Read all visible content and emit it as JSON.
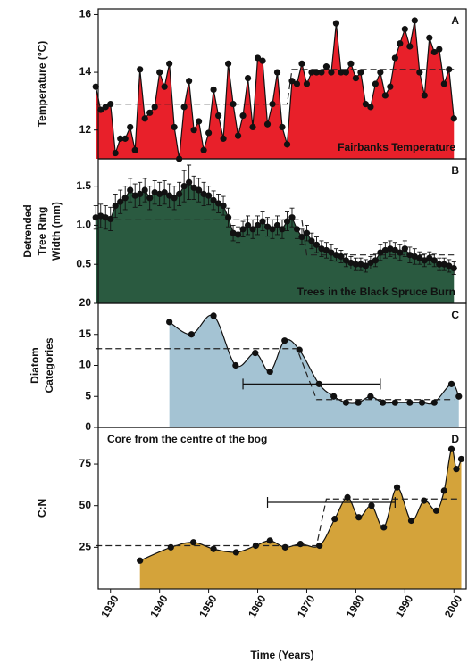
{
  "chart_data": [
    {
      "type": "area",
      "panel_label": "A",
      "note": "Fairbanks Temperature",
      "y_label": [
        "Temperature (°C)"
      ],
      "color": "#e8202a",
      "x": [
        1927,
        1928,
        1929,
        1930,
        1931,
        1932,
        1933,
        1934,
        1935,
        1936,
        1937,
        1938,
        1939,
        1940,
        1941,
        1942,
        1943,
        1944,
        1945,
        1946,
        1947,
        1948,
        1949,
        1950,
        1951,
        1952,
        1953,
        1954,
        1955,
        1956,
        1957,
        1958,
        1959,
        1960,
        1961,
        1962,
        1963,
        1964,
        1965,
        1966,
        1967,
        1968,
        1969,
        1970,
        1971,
        1972,
        1973,
        1974,
        1975,
        1976,
        1977,
        1978,
        1979,
        1980,
        1981,
        1982,
        1983,
        1984,
        1985,
        1986,
        1987,
        1988,
        1989,
        1990,
        1991,
        1992,
        1993,
        1994,
        1995,
        1996,
        1997,
        1998,
        1999,
        2000
      ],
      "values": [
        13.5,
        12.7,
        12.8,
        12.9,
        11.2,
        11.7,
        11.7,
        12.1,
        11.3,
        14.1,
        12.4,
        12.6,
        12.8,
        14.0,
        13.5,
        14.3,
        12.1,
        11.0,
        12.8,
        13.7,
        12.0,
        12.3,
        11.3,
        11.9,
        13.4,
        12.5,
        11.7,
        14.3,
        12.9,
        11.8,
        12.5,
        13.8,
        12.1,
        14.5,
        14.4,
        12.2,
        12.9,
        14.0,
        12.1,
        11.5,
        13.7,
        13.6,
        14.3,
        13.6,
        14.0,
        14.0,
        14.0,
        14.2,
        14.0,
        15.7,
        14.0,
        14.0,
        14.3,
        13.8,
        14.0,
        12.9,
        12.8,
        13.6,
        14.0,
        13.2,
        13.5,
        14.5,
        15.0,
        15.5,
        14.9,
        15.8,
        14.0,
        13.2,
        15.2,
        14.7,
        14.8,
        13.6,
        14.1,
        12.4
      ],
      "mean_line": {
        "x": [
          1927,
          1966,
          1967,
          2000
        ],
        "values": [
          12.9,
          12.9,
          14.1,
          14.1
        ]
      },
      "xlim": [
        1927.5,
        2002.5
      ],
      "ylim": [
        11,
        16.2
      ],
      "yticks": [
        12,
        14,
        16
      ]
    },
    {
      "type": "area",
      "panel_label": "B",
      "note": "Trees in the Black Spruce Burn",
      "y_label": [
        "Detrended",
        "Tree Ring",
        "Width (mm)"
      ],
      "color": "#2a5a40",
      "x": [
        1927,
        1928,
        1929,
        1930,
        1931,
        1932,
        1933,
        1934,
        1935,
        1936,
        1937,
        1938,
        1939,
        1940,
        1941,
        1942,
        1943,
        1944,
        1945,
        1946,
        1947,
        1948,
        1949,
        1950,
        1951,
        1952,
        1953,
        1954,
        1955,
        1956,
        1957,
        1958,
        1959,
        1960,
        1961,
        1962,
        1963,
        1964,
        1965,
        1966,
        1967,
        1968,
        1969,
        1970,
        1971,
        1972,
        1973,
        1974,
        1975,
        1976,
        1977,
        1978,
        1979,
        1980,
        1981,
        1982,
        1983,
        1984,
        1985,
        1986,
        1987,
        1988,
        1989,
        1990,
        1991,
        1992,
        1993,
        1994,
        1995,
        1996,
        1997,
        1998,
        1999,
        2000
      ],
      "values": [
        1.1,
        1.12,
        1.1,
        1.08,
        1.25,
        1.3,
        1.35,
        1.45,
        1.38,
        1.4,
        1.45,
        1.35,
        1.42,
        1.4,
        1.42,
        1.38,
        1.35,
        1.4,
        1.5,
        1.55,
        1.48,
        1.45,
        1.4,
        1.38,
        1.32,
        1.28,
        1.25,
        1.1,
        0.9,
        0.88,
        0.95,
        1.0,
        0.95,
        1.0,
        1.05,
        0.98,
        0.95,
        1.0,
        0.95,
        1.05,
        1.1,
        0.95,
        0.85,
        0.9,
        0.8,
        0.75,
        0.7,
        0.68,
        0.65,
        0.62,
        0.6,
        0.55,
        0.52,
        0.5,
        0.5,
        0.48,
        0.52,
        0.55,
        0.65,
        0.68,
        0.7,
        0.68,
        0.65,
        0.7,
        0.62,
        0.6,
        0.58,
        0.55,
        0.58,
        0.55,
        0.5,
        0.5,
        0.48,
        0.45
      ],
      "errors": [
        0.15,
        0.15,
        0.15,
        0.15,
        0.15,
        0.15,
        0.15,
        0.15,
        0.15,
        0.15,
        0.15,
        0.15,
        0.15,
        0.15,
        0.15,
        0.15,
        0.15,
        0.15,
        0.2,
        0.22,
        0.15,
        0.15,
        0.15,
        0.12,
        0.12,
        0.12,
        0.12,
        0.12,
        0.1,
        0.1,
        0.1,
        0.12,
        0.12,
        0.12,
        0.12,
        0.12,
        0.12,
        0.12,
        0.12,
        0.12,
        0.12,
        0.12,
        0.1,
        0.1,
        0.1,
        0.1,
        0.1,
        0.1,
        0.1,
        0.08,
        0.08,
        0.08,
        0.08,
        0.08,
        0.08,
        0.08,
        0.08,
        0.08,
        0.1,
        0.1,
        0.1,
        0.1,
        0.1,
        0.1,
        0.1,
        0.1,
        0.08,
        0.08,
        0.08,
        0.08,
        0.08,
        0.08,
        0.08,
        0.08
      ],
      "mean_line": {
        "x": [
          1927,
          1969,
          1970,
          2000
        ],
        "values": [
          1.07,
          1.07,
          0.62,
          0.62
        ]
      },
      "xlim": [
        1927.5,
        2002.5
      ],
      "ylim": [
        0,
        1.85
      ],
      "yticks": [
        0.5,
        {
          "value": 1,
          "label": "1.0"
        },
        1.5
      ]
    },
    {
      "type": "area",
      "smooth": true,
      "panel_label": "C",
      "y_label": [
        "Diatom",
        "Categories"
      ],
      "color": "#a4c3d3",
      "x": [
        1942,
        1946.5,
        1951,
        1955.5,
        1959.5,
        1962.5,
        1965.5,
        1968.5,
        1972.5,
        1975.5,
        1978,
        1980.5,
        1983,
        1985.5,
        1988,
        1991,
        1993.5,
        1996,
        1999.5,
        2001
      ],
      "values": [
        17,
        15,
        18,
        10,
        12,
        9,
        14,
        12.5,
        7,
        5,
        4,
        4,
        5,
        4,
        4,
        4,
        4,
        4,
        7,
        5
      ],
      "mean_line": {
        "x": [
          1927,
          1968,
          1972,
          2000
        ],
        "values": [
          12.7,
          12.7,
          4.5,
          4.5
        ]
      },
      "range_bar": {
        "x": [
          1957,
          1985
        ],
        "value": 7
      },
      "xlim": [
        1927.5,
        2002.5
      ],
      "ylim": [
        0,
        20
      ],
      "yticks": [
        0,
        5,
        10,
        15,
        20
      ]
    },
    {
      "type": "area",
      "smooth": true,
      "panel_label": "D",
      "note": "Core from the centre of the bog",
      "y_label": [
        "C:N"
      ],
      "color": "#d4a33a",
      "x": [
        1936,
        1942.3,
        1946.9,
        1951,
        1955.6,
        1959.6,
        1962.5,
        1965.6,
        1968.7,
        1972.6,
        1975.7,
        1978.3,
        1980.6,
        1983.2,
        1985.7,
        1988.4,
        1991.3,
        1993.9,
        1996.4,
        1998,
        1999.5,
        2000.5,
        2001.5
      ],
      "values": [
        17,
        25,
        28,
        24,
        22,
        26,
        29,
        25,
        27,
        26,
        42,
        55,
        43,
        50,
        37,
        61,
        41,
        53,
        47,
        59,
        84,
        72,
        78
      ],
      "mean_line": {
        "x": [
          1927,
          1972,
          1974,
          2001
        ],
        "values": [
          26,
          26,
          54,
          54
        ]
      },
      "range_bar": {
        "x": [
          1962,
          1988
        ],
        "value": 52
      },
      "xlim": [
        1927.5,
        2002.5
      ],
      "ylim": [
        0,
        97
      ],
      "yticks": [
        25,
        50,
        75
      ],
      "xticks": [
        1930,
        1940,
        1950,
        1960,
        1970,
        1980,
        1990,
        2000
      ],
      "x_label": "Time (Years)"
    }
  ]
}
